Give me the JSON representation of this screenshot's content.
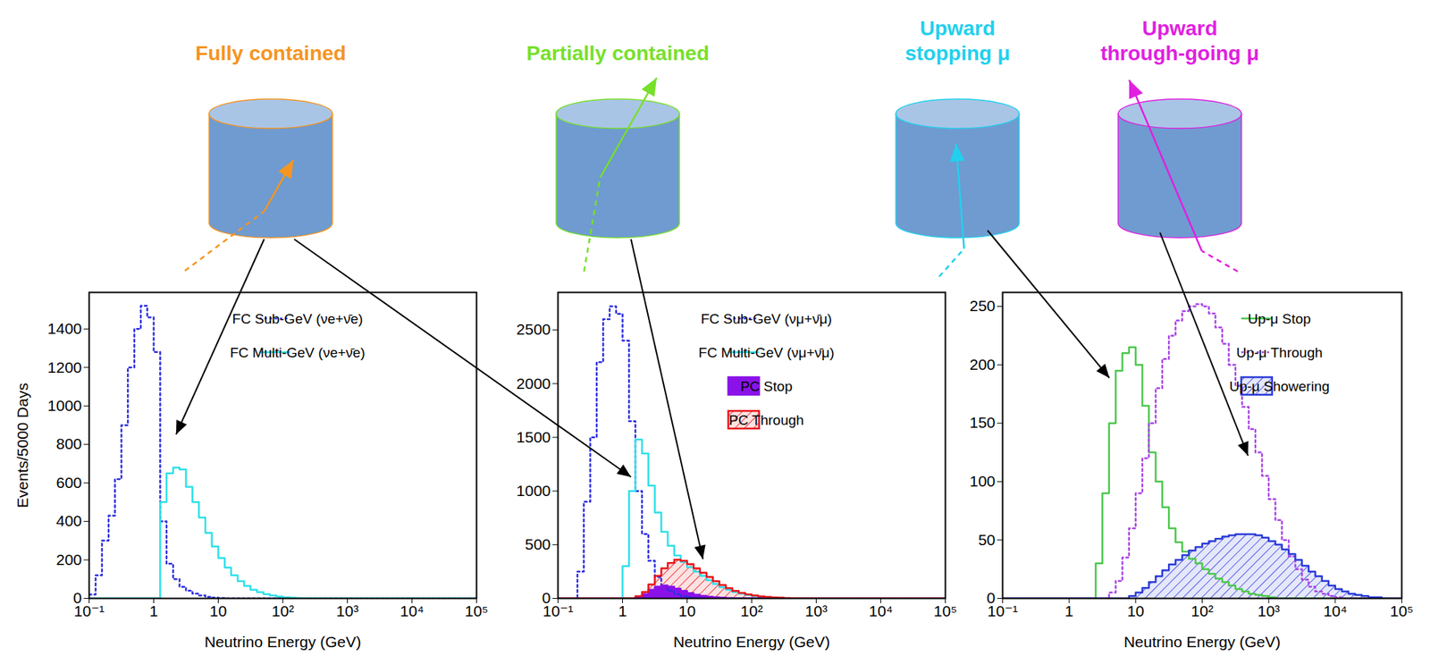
{
  "diagram": {
    "labels": [
      {
        "text": "Fully contained",
        "color": "#f5951f"
      },
      {
        "text": "Partially contained",
        "color": "#77e02a"
      },
      {
        "text": "Upward stopping μ",
        "color": "#22d0ee"
      },
      {
        "text": "Upward through-going μ",
        "color": "#e020e0"
      }
    ]
  },
  "chart_data": [
    {
      "type": "histogram",
      "xlabel": "Neutrino Energy (GeV)",
      "ylabel": "Events/5000 Days",
      "log": "x",
      "legend": "top-right",
      "xlim": [
        0.1,
        100000
      ],
      "xticks": [
        {
          "value": 0.1,
          "label": "10⁻¹"
        },
        1,
        10,
        {
          "value": 100,
          "label": "10²"
        },
        {
          "value": 1000,
          "label": "10³"
        },
        {
          "value": 10000,
          "label": "10⁴"
        },
        {
          "value": 100000,
          "label": "10⁵"
        }
      ],
      "ylim": [
        0,
        1590
      ],
      "yticks": [
        0,
        200,
        400,
        600,
        800,
        1000,
        1200,
        1400
      ],
      "bins": [
        0.1,
        0.126,
        0.158,
        0.2,
        0.251,
        0.316,
        0.398,
        0.501,
        0.631,
        0.794,
        1,
        1.26,
        1.58,
        2,
        2.51,
        3.16,
        3.98,
        5.01,
        6.31,
        7.94,
        10,
        12.6,
        15.8,
        20,
        25.1,
        31.6,
        39.8,
        50.1,
        63.1,
        79.4,
        100,
        126,
        158,
        200,
        251,
        316,
        398,
        501,
        631,
        794,
        1000,
        1260,
        1580,
        2000,
        2510,
        3160,
        3980,
        5010,
        6310,
        7940,
        10000,
        12600,
        15800,
        20000,
        25100,
        31600,
        39800,
        50100,
        63100,
        79400,
        100000
      ],
      "series": [
        {
          "name": "FC Sub-GeV (νe+ν̄e)",
          "type": "line",
          "line_style": "dotted",
          "color": "#2c2ee0",
          "values": [
            20,
            120,
            300,
            430,
            620,
            900,
            1200,
            1400,
            1520,
            1460,
            1280,
            400,
            180,
            100,
            60,
            40,
            25,
            15,
            8,
            4,
            2,
            0,
            0,
            0,
            0,
            0,
            0,
            0,
            0,
            0,
            0,
            0,
            0,
            0,
            0,
            0,
            0,
            0,
            0,
            0,
            0,
            0,
            0,
            0,
            0,
            0,
            0,
            0,
            0,
            0,
            0,
            0,
            0,
            0,
            0,
            0,
            0,
            0,
            0,
            0
          ]
        },
        {
          "name": "FC Multi-GeV (νe+ν̄e)",
          "type": "line",
          "line_style": "solid",
          "color": "#2ee0e8",
          "values": [
            0,
            0,
            0,
            0,
            0,
            0,
            0,
            0,
            0,
            0,
            0,
            500,
            650,
            680,
            670,
            580,
            500,
            420,
            340,
            270,
            210,
            160,
            120,
            90,
            65,
            45,
            32,
            22,
            15,
            10,
            6,
            4,
            2,
            1,
            0,
            0,
            0,
            0,
            0,
            0,
            0,
            0,
            0,
            0,
            0,
            0,
            0,
            0,
            0,
            0,
            0,
            0,
            0,
            0,
            0,
            0,
            0,
            0,
            0,
            0
          ]
        }
      ]
    },
    {
      "type": "histogram",
      "xlabel": "Neutrino Energy (GeV)",
      "log": "x",
      "legend": "top-right",
      "xlim": [
        0.1,
        100000
      ],
      "xticks": [
        {
          "value": 0.1,
          "label": "10⁻¹"
        },
        1,
        10,
        {
          "value": 100,
          "label": "10²"
        },
        {
          "value": 1000,
          "label": "10³"
        },
        {
          "value": 10000,
          "label": "10⁴"
        },
        {
          "value": 100000,
          "label": "10⁵"
        }
      ],
      "ylim": [
        0,
        2850
      ],
      "yticks": [
        0,
        500,
        1000,
        1500,
        2000,
        2500
      ],
      "bins": [
        0.1,
        0.126,
        0.158,
        0.2,
        0.251,
        0.316,
        0.398,
        0.501,
        0.631,
        0.794,
        1,
        1.26,
        1.58,
        2,
        2.51,
        3.16,
        3.98,
        5.01,
        6.31,
        7.94,
        10,
        12.6,
        15.8,
        20,
        25.1,
        31.6,
        39.8,
        50.1,
        63.1,
        79.4,
        100,
        126,
        158,
        200,
        251,
        316,
        398,
        501,
        631,
        794,
        1000,
        1260,
        1580,
        2000,
        2510,
        3160,
        3980,
        5010,
        6310,
        7940,
        10000,
        12600,
        15800,
        20000,
        25100,
        31600,
        39800,
        50100,
        63100,
        79400,
        100000
      ],
      "series": [
        {
          "name": "FC Sub-GeV (νμ+ν̄μ)",
          "type": "line",
          "line_style": "dotted",
          "color": "#2c2ee0",
          "values": [
            0,
            0,
            0,
            250,
            900,
            1500,
            2200,
            2600,
            2720,
            2650,
            2400,
            1650,
            1000,
            600,
            350,
            200,
            120,
            70,
            40,
            20,
            10,
            5,
            0,
            0,
            0,
            0,
            0,
            0,
            0,
            0,
            0,
            0,
            0,
            0,
            0,
            0,
            0,
            0,
            0,
            0,
            0,
            0,
            0,
            0,
            0,
            0,
            0,
            0,
            0,
            0,
            0,
            0,
            0,
            0,
            0,
            0,
            0,
            0,
            0,
            0
          ]
        },
        {
          "name": "FC Multi-GeV (νμ+ν̄μ)",
          "type": "line",
          "line_style": "solid",
          "color": "#2ee0e8",
          "values": [
            0,
            0,
            0,
            0,
            0,
            0,
            0,
            0,
            0,
            0,
            300,
            1000,
            1480,
            1350,
            1050,
            800,
            620,
            490,
            400,
            340,
            290,
            250,
            210,
            170,
            135,
            105,
            80,
            60,
            45,
            32,
            22,
            15,
            10,
            6,
            3,
            1,
            0,
            0,
            0,
            0,
            0,
            0,
            0,
            0,
            0,
            0,
            0,
            0,
            0,
            0,
            0,
            0,
            0,
            0,
            0,
            0,
            0,
            0,
            0,
            0
          ]
        },
        {
          "name": "PC Stop",
          "type": "area",
          "line_style": "solid",
          "color": "#8a12e8",
          "values": [
            0,
            0,
            0,
            0,
            0,
            0,
            0,
            0,
            0,
            0,
            0,
            0,
            10,
            40,
            80,
            110,
            120,
            110,
            90,
            70,
            50,
            35,
            24,
            16,
            10,
            6,
            4,
            2,
            1,
            0,
            0,
            0,
            0,
            0,
            0,
            0,
            0,
            0,
            0,
            0,
            0,
            0,
            0,
            0,
            0,
            0,
            0,
            0,
            0,
            0,
            0,
            0,
            0,
            0,
            0,
            0,
            0,
            0,
            0,
            0
          ]
        },
        {
          "name": "PC Through",
          "type": "hatch",
          "line_style": "solid",
          "color": "#e8141a",
          "values": [
            0,
            0,
            0,
            0,
            0,
            0,
            0,
            0,
            0,
            0,
            0,
            0,
            20,
            60,
            130,
            210,
            280,
            330,
            360,
            350,
            320,
            280,
            240,
            200,
            160,
            125,
            95,
            70,
            52,
            38,
            27,
            19,
            13,
            9,
            6,
            4,
            2,
            1,
            0,
            0,
            0,
            0,
            0,
            0,
            0,
            0,
            0,
            0,
            0,
            0,
            0,
            0,
            0,
            0,
            0,
            0,
            0,
            0,
            0,
            0
          ]
        }
      ]
    },
    {
      "type": "histogram",
      "xlabel": "Neutrino Energy (GeV)",
      "log": "x",
      "legend": "top-right",
      "xlim": [
        0.1,
        100000
      ],
      "xticks": [
        {
          "value": 0.1,
          "label": "10⁻¹"
        },
        1,
        10,
        {
          "value": 100,
          "label": "10²"
        },
        {
          "value": 1000,
          "label": "10³"
        },
        {
          "value": 10000,
          "label": "10⁴"
        },
        {
          "value": 100000,
          "label": "10⁵"
        }
      ],
      "ylim": [
        0,
        262
      ],
      "yticks": [
        0,
        50,
        100,
        150,
        200,
        250
      ],
      "bins": [
        0.1,
        0.126,
        0.158,
        0.2,
        0.251,
        0.316,
        0.398,
        0.501,
        0.631,
        0.794,
        1,
        1.26,
        1.58,
        2,
        2.51,
        3.16,
        3.98,
        5.01,
        6.31,
        7.94,
        10,
        12.6,
        15.8,
        20,
        25.1,
        31.6,
        39.8,
        50.1,
        63.1,
        79.4,
        100,
        126,
        158,
        200,
        251,
        316,
        398,
        501,
        631,
        794,
        1000,
        1260,
        1580,
        2000,
        2510,
        3160,
        3980,
        5010,
        6310,
        7940,
        10000,
        12600,
        15800,
        20000,
        25100,
        31600,
        39800,
        50100,
        63100,
        79400,
        100000
      ],
      "series": [
        {
          "name": "Up-μ Stop",
          "type": "line",
          "line_style": "solid",
          "color": "#4cc84c",
          "values": [
            0,
            0,
            0,
            0,
            0,
            0,
            0,
            0,
            0,
            0,
            0,
            0,
            0,
            0,
            30,
            90,
            150,
            195,
            210,
            215,
            200,
            165,
            125,
            100,
            78,
            60,
            48,
            40,
            34,
            30,
            25,
            21,
            17,
            14,
            11,
            8,
            6,
            4,
            3,
            2,
            1,
            0,
            0,
            0,
            0,
            0,
            0,
            0,
            0,
            0,
            0,
            0,
            0,
            0,
            0,
            0,
            0,
            0,
            0,
            0
          ]
        },
        {
          "name": "Up-μ Through",
          "type": "line",
          "line_style": "dotted",
          "color": "#a844e6",
          "values": [
            0,
            0,
            0,
            0,
            0,
            0,
            0,
            0,
            0,
            0,
            0,
            0,
            0,
            0,
            0,
            0,
            5,
            15,
            35,
            60,
            90,
            120,
            150,
            180,
            205,
            225,
            238,
            246,
            250,
            252,
            250,
            244,
            232,
            218,
            200,
            182,
            164,
            145,
            125,
            105,
            85,
            67,
            50,
            36,
            25,
            16,
            10,
            6,
            4,
            2,
            1,
            0,
            0,
            0,
            0,
            0,
            0,
            0,
            0,
            0
          ]
        },
        {
          "name": "Up-μ Showering",
          "type": "hatch",
          "line_style": "solid",
          "color": "#2b3bd8",
          "values": [
            0,
            0,
            0,
            0,
            0,
            0,
            0,
            0,
            0,
            0,
            0,
            0,
            0,
            0,
            0,
            0,
            0,
            0,
            0,
            2,
            5,
            9,
            14,
            19,
            24,
            29,
            33,
            37,
            41,
            44,
            47,
            49,
            51,
            53,
            54,
            55,
            55,
            55,
            54,
            52,
            49,
            46,
            42,
            38,
            33,
            28,
            23,
            19,
            15,
            11,
            8,
            6,
            4,
            3,
            2,
            1,
            1,
            0,
            0,
            0
          ]
        }
      ]
    }
  ]
}
